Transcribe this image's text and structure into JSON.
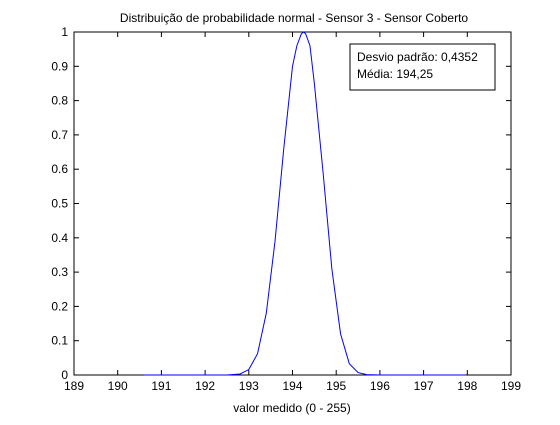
{
  "colors": {
    "background": "#ffffff",
    "axes": "#000000",
    "series": "#0000ff"
  },
  "chart_data": {
    "type": "line",
    "title": "Distribuição de probabilidade normal - Sensor 3 - Sensor Coberto",
    "xlabel": "valor medido (0 - 255)",
    "ylabel": "",
    "xlim": [
      189,
      199
    ],
    "ylim": [
      0,
      1
    ],
    "xticks": [
      189,
      190,
      191,
      192,
      193,
      194,
      195,
      196,
      197,
      198,
      199
    ],
    "yticks": [
      0,
      0.1,
      0.2,
      0.3,
      0.4,
      0.5,
      0.6,
      0.7,
      0.8,
      0.9,
      1
    ],
    "grid": false,
    "legend": "none",
    "annotation": {
      "placement": "top-right",
      "lines": [
        "Desvio padrão: 0,4352",
        "Média: 194,25"
      ]
    },
    "series": [
      {
        "color": "#0000ff",
        "x": [
          190.6,
          191.0,
          191.5,
          192.0,
          192.5,
          192.8,
          193.0,
          193.2,
          193.4,
          193.6,
          193.8,
          194.0,
          194.1,
          194.2,
          194.25,
          194.3,
          194.4,
          194.5,
          194.7,
          194.9,
          195.1,
          195.3,
          195.5,
          195.7,
          196.0,
          196.5,
          197.0,
          197.5,
          197.95
        ],
        "y": [
          0,
          0,
          0,
          0,
          0,
          0.003,
          0.016,
          0.062,
          0.18,
          0.39,
          0.66,
          0.9,
          0.96,
          0.994,
          1.0,
          0.995,
          0.96,
          0.85,
          0.59,
          0.31,
          0.12,
          0.033,
          0.007,
          0.001,
          0,
          0,
          0,
          0,
          0
        ]
      }
    ]
  }
}
